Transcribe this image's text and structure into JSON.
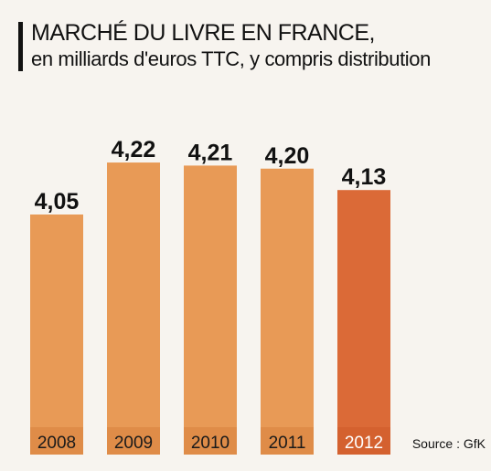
{
  "chart_data": {
    "type": "bar",
    "title": "MARCHÉ DU LIVRE EN FRANCE,",
    "subtitle": "en milliards d'euros TTC, y compris distribution",
    "categories": [
      "2008",
      "2009",
      "2010",
      "2011",
      "2012"
    ],
    "values": [
      4.05,
      4.22,
      4.21,
      4.2,
      4.13
    ],
    "value_labels": [
      "4,05",
      "4,22",
      "4,21",
      "4,20",
      "4,13"
    ],
    "colors": [
      "#e89a56",
      "#e89a56",
      "#e89a56",
      "#e89a56",
      "#db6a37"
    ],
    "highlight_color": "#db6a37",
    "base_color": "#e89a56",
    "source": "Source : GfK",
    "xlabel": "",
    "ylabel": "",
    "grid": false,
    "legend": "none"
  }
}
